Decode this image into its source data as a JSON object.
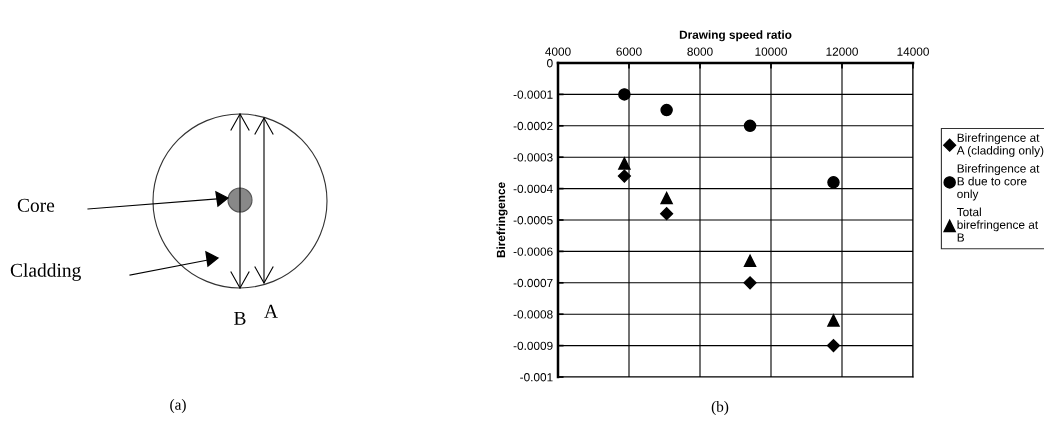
{
  "chart_data": [
    {
      "type": "other",
      "annotations": [
        "Core",
        "Cladding",
        "B",
        "A",
        "(a)"
      ]
    },
    {
      "type": "scatter",
      "xlabel": "Drawing speed ratio",
      "ylabel": "Birefringence",
      "annotations": [
        "(b)"
      ],
      "xlim": [
        4000,
        14000
      ],
      "xticks": [
        4000,
        6000,
        8000,
        10000,
        12000,
        14000
      ],
      "ylim": [
        -0.001,
        0
      ],
      "yticks": [
        -0.001,
        -0.0009,
        -0.0008,
        -0.0007,
        -0.0006,
        -0.0005,
        -0.0004,
        -0.0003,
        -0.0002,
        -0.0001,
        0
      ],
      "grid": true,
      "legend": "right",
      "x": [
        5870,
        7060,
        9410,
        11760
      ],
      "series": [
        {
          "name": "Birefringence at A (cladding only)",
          "color": "#000000",
          "marker": "diamond",
          "values": [
            -0.00036,
            -0.00048,
            -0.0007,
            -0.0009
          ]
        },
        {
          "name": "Birefringence at B due to core only",
          "color": "#000000",
          "marker": "circle",
          "values": [
            -0.0001,
            -0.00015,
            -0.0002,
            -0.00038
          ]
        },
        {
          "name": "Total birefringence at B",
          "color": "#000000",
          "marker": "triangle",
          "values": [
            -0.00032,
            -0.00043,
            -0.00063,
            -0.00082
          ]
        }
      ]
    }
  ]
}
